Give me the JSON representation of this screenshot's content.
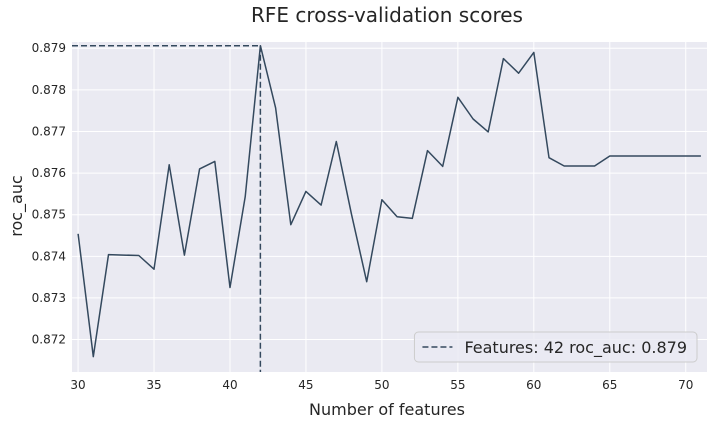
{
  "chart_data": {
    "type": "line",
    "title": "RFE cross-validation scores",
    "xlabel": "Number of features",
    "ylabel": "roc_auc",
    "xlim": [
      29.6,
      71.4
    ],
    "ylim": [
      0.87122,
      0.87915
    ],
    "x_ticks": [
      30,
      35,
      40,
      45,
      50,
      55,
      60,
      65,
      70
    ],
    "y_ticks": [
      0.872,
      0.873,
      0.874,
      0.875,
      0.876,
      0.877,
      0.878,
      0.879
    ],
    "grid": true,
    "legend_position": "bottom-right",
    "series": [
      {
        "name": "",
        "color": "#34495e",
        "x": [
          30,
          31,
          32,
          33,
          34,
          35,
          36,
          37,
          38,
          39,
          40,
          41,
          42,
          43,
          44,
          45,
          46,
          47,
          48,
          49,
          50,
          51,
          52,
          53,
          54,
          55,
          56,
          57,
          58,
          59,
          60,
          61,
          62,
          63,
          64,
          65,
          66,
          67,
          68,
          69,
          70,
          71
        ],
        "y": [
          0.87454,
          0.87159,
          0.87404,
          0.87403,
          0.87402,
          0.87369,
          0.8762,
          0.87403,
          0.8761,
          0.87628,
          0.87325,
          0.87543,
          0.87906,
          0.87757,
          0.87476,
          0.87556,
          0.87523,
          0.87676,
          0.87501,
          0.87339,
          0.87536,
          0.87495,
          0.87491,
          0.87654,
          0.87616,
          0.87782,
          0.8773,
          0.87699,
          0.87875,
          0.8784,
          0.8789,
          0.87637,
          0.87617,
          0.87617,
          0.87617,
          0.87641,
          0.87641,
          0.87641,
          0.87641,
          0.87641,
          0.87641,
          0.87641
        ]
      }
    ],
    "best": {
      "features": 42,
      "score": 0.87906
    },
    "legend_label": "Features: 42   roc_auc: 0.879"
  },
  "colors": {
    "plot_background": "#eaeaf2",
    "grid": "#ffffff",
    "line": "#34495e",
    "marker_line": "#34495e",
    "text": "#262626"
  }
}
